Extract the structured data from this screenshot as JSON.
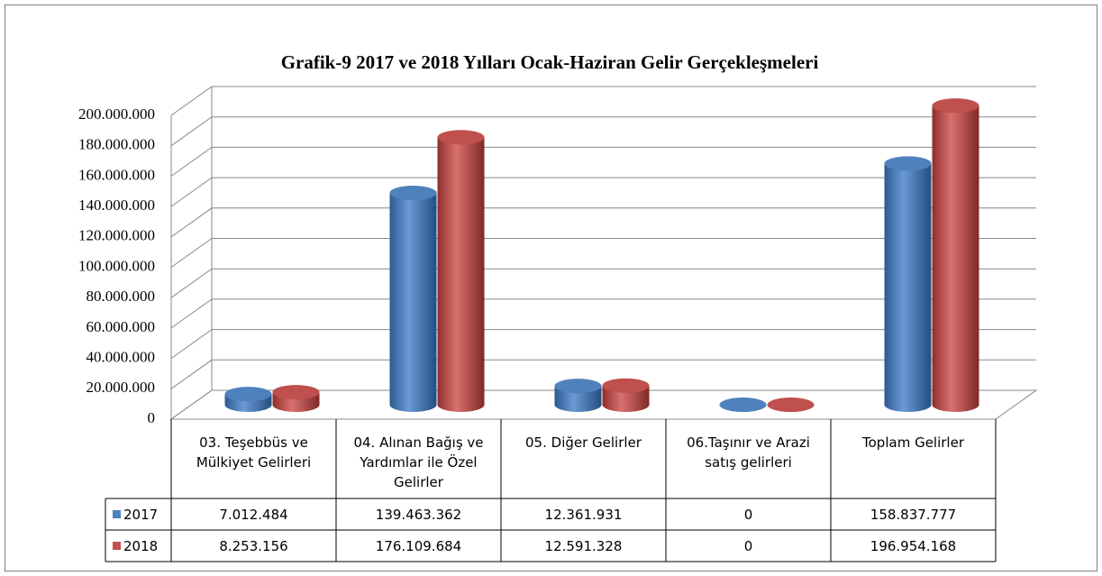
{
  "chart_data": {
    "type": "bar3d",
    "title": "Grafik-9  2017 ve 2018 Yılları Ocak-Haziran Gelir Gerçekleşmeleri",
    "categories": [
      "03. Teşebbüs ve Mülkiyet Gelirleri",
      "04. Alınan Bağış ve Yardımlar ile Özel Gelirler",
      "05. Diğer Gelirler",
      "06.Taşınır ve Arazi satış gelirleri",
      "Toplam Gelirler"
    ],
    "series": [
      {
        "name": "2017",
        "color": "#4f81bd",
        "values": [
          7012484,
          139463362,
          12361931,
          0,
          158837777
        ],
        "value_labels": [
          "7.012.484",
          "139.463.362",
          "12.361.931",
          "0",
          "158.837.777"
        ]
      },
      {
        "name": "2018",
        "color": "#c0504d",
        "values": [
          8253156,
          176109684,
          12591328,
          0,
          196954168
        ],
        "value_labels": [
          "8.253.156",
          "176.109.684",
          "12.591.328",
          "0",
          "196.954.168"
        ]
      }
    ],
    "ylim": [
      0,
      200000000
    ],
    "yticks": [
      0,
      {
        "value": 20000000,
        "label": "20.000.000"
      },
      {
        "value": 40000000,
        "label": "40.000.000"
      },
      {
        "value": 60000000,
        "label": "60.000.000"
      },
      {
        "value": 80000000,
        "label": "80.000.000"
      },
      {
        "value": 100000000,
        "label": "100.000.000"
      },
      {
        "value": 120000000,
        "label": "120.000.000"
      },
      {
        "value": 140000000,
        "label": "140.000.000"
      },
      {
        "value": 160000000,
        "label": "160.000.000"
      },
      {
        "value": 180000000,
        "label": "180.000.000"
      },
      {
        "value": 200000000,
        "label": "200.000.000"
      }
    ],
    "grid": true
  }
}
